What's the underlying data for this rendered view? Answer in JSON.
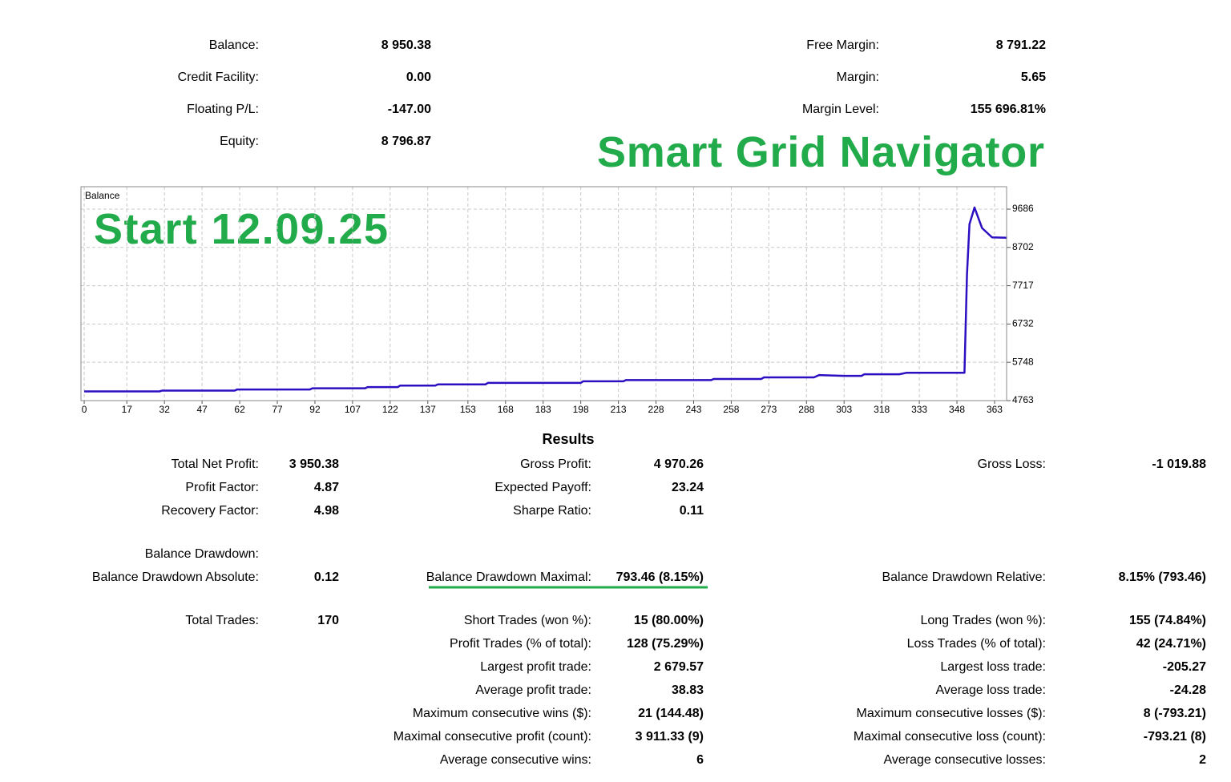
{
  "account": {
    "left": [
      [
        "Balance:",
        "8 950.38"
      ],
      [
        "Credit Facility:",
        "0.00"
      ],
      [
        "Floating P/L:",
        "-147.00"
      ],
      [
        "Equity:",
        "8 796.87"
      ]
    ],
    "right": [
      [
        "Free Margin:",
        "8 791.22"
      ],
      [
        "Margin:",
        "5.65"
      ],
      [
        "Margin Level:",
        "155 696.81%"
      ]
    ]
  },
  "banner": "Smart Grid Navigator",
  "chart_data": {
    "type": "line",
    "title": "Balance",
    "annotation": "Start 12.09.25",
    "x": [
      0,
      30,
      31,
      60,
      61,
      90,
      91,
      112,
      113,
      125,
      126,
      140,
      141,
      160,
      161,
      198,
      199,
      215,
      216,
      250,
      251,
      270,
      271,
      291,
      293,
      303,
      310,
      311,
      325,
      328,
      351,
      352,
      353,
      355,
      358,
      362,
      368
    ],
    "values": [
      5000,
      5000,
      5020,
      5020,
      5050,
      5050,
      5080,
      5080,
      5110,
      5110,
      5150,
      5150,
      5180,
      5180,
      5220,
      5220,
      5260,
      5260,
      5290,
      5290,
      5320,
      5320,
      5360,
      5360,
      5420,
      5400,
      5400,
      5440,
      5440,
      5480,
      5480,
      8000,
      9300,
      9728,
      9200,
      8960,
      8950
    ],
    "color": "#2d0fc2",
    "xlim": [
      -1.3,
      367.8
    ],
    "ylim": [
      4763,
      10263
    ],
    "xticks": [
      0,
      17,
      32,
      47,
      62,
      77,
      92,
      107,
      122,
      137,
      153,
      168,
      183,
      198,
      213,
      228,
      243,
      258,
      273,
      288,
      303,
      318,
      333,
      348,
      363
    ],
    "yticks": [
      4763,
      5748,
      6732,
      7717,
      8702,
      9686
    ],
    "grid": true
  },
  "results": {
    "title": "Results",
    "rows": [
      {
        "left": [
          "Total Net Profit:",
          "3 950.38"
        ],
        "middle": [
          "Gross Profit:",
          "4 970.26"
        ],
        "right": [
          "Gross Loss:",
          "-1 019.88"
        ]
      },
      {
        "left": [
          "Profit Factor:",
          "4.87"
        ],
        "middle": [
          "Expected Payoff:",
          "23.24"
        ]
      },
      {
        "left": [
          "Recovery Factor:",
          "4.98"
        ],
        "middle": [
          "Sharpe Ratio:",
          "0.11"
        ]
      },
      {
        "left": [
          "Balance Drawdown:"
        ]
      },
      {
        "left": [
          "Balance Drawdown Absolute:",
          "0.12"
        ],
        "middle": [
          "Balance Drawdown Maximal:",
          "793.46 (8.15%)"
        ],
        "right": [
          "Balance Drawdown Relative:",
          "8.15% (793.46)"
        ]
      },
      {
        "left": [
          "Total Trades:",
          "170"
        ],
        "middle": [
          "Short Trades (won %):",
          "15 (80.00%)"
        ],
        "right": [
          "Long Trades (won %):",
          "155 (74.84%)"
        ]
      },
      {
        "middle": [
          "Profit Trades (% of total):",
          "128 (75.29%)"
        ],
        "right": [
          "Loss Trades (% of total):",
          "42 (24.71%)"
        ]
      },
      {
        "middle": [
          "Largest profit trade:",
          "2 679.57"
        ],
        "right": [
          "Largest loss trade:",
          "-205.27"
        ]
      },
      {
        "middle": [
          "Average profit trade:",
          "38.83"
        ],
        "right": [
          "Average loss trade:",
          "-24.28"
        ]
      },
      {
        "middle": [
          "Maximum consecutive wins ($):",
          "21 (144.48)"
        ],
        "right": [
          "Maximum consecutive losses ($):",
          "8 (-793.21)"
        ]
      },
      {
        "middle": [
          "Maximal consecutive profit (count):",
          "3 911.33 (9)"
        ],
        "right": [
          "Maximal consecutive loss (count):",
          "-793.21 (8)"
        ]
      },
      {
        "middle": [
          "Average consecutive wins:",
          "6"
        ],
        "right": [
          "Average consecutive losses:",
          "2"
        ]
      }
    ]
  }
}
